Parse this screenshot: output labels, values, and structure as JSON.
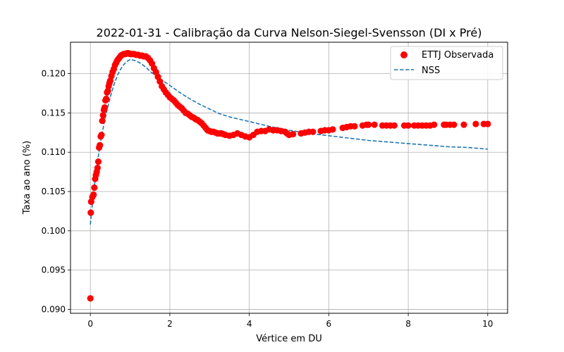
{
  "chart_data": {
    "type": "scatter",
    "title": "2022-01-31 - Calibração da Curva Nelson-Siegel-Svensson (DI x Pré)",
    "xlabel": "Vértice em DU",
    "ylabel": "Taxa ao ano (%)",
    "xlim": [
      -0.5,
      10.5
    ],
    "ylim": [
      0.0895,
      0.124
    ],
    "x_ticks": [
      0,
      2,
      4,
      6,
      8,
      10
    ],
    "y_ticks": [
      0.09,
      0.095,
      0.1,
      0.105,
      0.11,
      0.115,
      0.12
    ],
    "x_tick_labels": [
      "0",
      "2",
      "4",
      "6",
      "8",
      "10"
    ],
    "y_tick_labels": [
      "0.090",
      "0.095",
      "0.100",
      "0.105",
      "0.110",
      "0.115",
      "0.120"
    ],
    "grid": true,
    "legend_position": "top-right",
    "colors": {
      "observed": "#ff0000",
      "nss": "#1f77b4"
    },
    "series": [
      {
        "name": "ETTJ Observada",
        "kind": "scatter",
        "points": [
          [
            0.0,
            0.0914
          ],
          [
            0.01,
            0.1023
          ],
          [
            0.02,
            0.1037
          ],
          [
            0.05,
            0.1043
          ],
          [
            0.08,
            0.1046
          ],
          [
            0.1,
            0.1055
          ],
          [
            0.12,
            0.1066
          ],
          [
            0.14,
            0.1071
          ],
          [
            0.16,
            0.1075
          ],
          [
            0.18,
            0.108
          ],
          [
            0.2,
            0.1088
          ],
          [
            0.22,
            0.1106
          ],
          [
            0.24,
            0.1109
          ],
          [
            0.26,
            0.112
          ],
          [
            0.28,
            0.1122
          ],
          [
            0.3,
            0.114
          ],
          [
            0.32,
            0.1147
          ],
          [
            0.34,
            0.1154
          ],
          [
            0.36,
            0.1157
          ],
          [
            0.38,
            0.1166
          ],
          [
            0.4,
            0.1168
          ],
          [
            0.42,
            0.1176
          ],
          [
            0.44,
            0.1178
          ],
          [
            0.46,
            0.1184
          ],
          [
            0.48,
            0.1188
          ],
          [
            0.5,
            0.1191
          ],
          [
            0.53,
            0.1197
          ],
          [
            0.56,
            0.1202
          ],
          [
            0.59,
            0.1206
          ],
          [
            0.62,
            0.1211
          ],
          [
            0.65,
            0.1214
          ],
          [
            0.68,
            0.1217
          ],
          [
            0.71,
            0.1219
          ],
          [
            0.74,
            0.1221
          ],
          [
            0.77,
            0.1223
          ],
          [
            0.8,
            0.1224
          ],
          [
            0.84,
            0.1225
          ],
          [
            0.88,
            0.1225
          ],
          [
            0.92,
            0.1226
          ],
          [
            0.96,
            0.1226
          ],
          [
            1.0,
            0.1225
          ],
          [
            1.05,
            0.1225
          ],
          [
            1.1,
            0.1225
          ],
          [
            1.15,
            0.1224
          ],
          [
            1.2,
            0.1224
          ],
          [
            1.25,
            0.1223
          ],
          [
            1.3,
            0.1223
          ],
          [
            1.35,
            0.1222
          ],
          [
            1.4,
            0.1222
          ],
          [
            1.45,
            0.122
          ],
          [
            1.5,
            0.1217
          ],
          [
            1.55,
            0.1213
          ],
          [
            1.6,
            0.1207
          ],
          [
            1.65,
            0.1202
          ],
          [
            1.7,
            0.1196
          ],
          [
            1.75,
            0.119
          ],
          [
            1.8,
            0.1184
          ],
          [
            1.85,
            0.118
          ],
          [
            1.9,
            0.1176
          ],
          [
            1.95,
            0.1173
          ],
          [
            2.0,
            0.117
          ],
          [
            2.05,
            0.1168
          ],
          [
            2.1,
            0.1166
          ],
          [
            2.15,
            0.1163
          ],
          [
            2.2,
            0.116
          ],
          [
            2.25,
            0.1158
          ],
          [
            2.3,
            0.1156
          ],
          [
            2.35,
            0.1153
          ],
          [
            2.4,
            0.115
          ],
          [
            2.45,
            0.1149
          ],
          [
            2.5,
            0.1147
          ],
          [
            2.55,
            0.1145
          ],
          [
            2.6,
            0.1144
          ],
          [
            2.65,
            0.1142
          ],
          [
            2.7,
            0.1141
          ],
          [
            2.75,
            0.1139
          ],
          [
            2.8,
            0.1137
          ],
          [
            2.85,
            0.1134
          ],
          [
            2.9,
            0.1131
          ],
          [
            2.95,
            0.1128
          ],
          [
            3.0,
            0.1127
          ],
          [
            3.05,
            0.1126
          ],
          [
            3.1,
            0.1126
          ],
          [
            3.15,
            0.1125
          ],
          [
            3.2,
            0.1124
          ],
          [
            3.25,
            0.1124
          ],
          [
            3.3,
            0.1124
          ],
          [
            3.35,
            0.1123
          ],
          [
            3.4,
            0.1122
          ],
          [
            3.5,
            0.1121
          ],
          [
            3.6,
            0.1122
          ],
          [
            3.7,
            0.1124
          ],
          [
            3.8,
            0.1122
          ],
          [
            3.9,
            0.112
          ],
          [
            4.0,
            0.1119
          ],
          [
            4.1,
            0.1122
          ],
          [
            4.2,
            0.1126
          ],
          [
            4.3,
            0.1127
          ],
          [
            4.4,
            0.1127
          ],
          [
            4.5,
            0.1129
          ],
          [
            4.6,
            0.1128
          ],
          [
            4.7,
            0.1128
          ],
          [
            4.8,
            0.1127
          ],
          [
            4.9,
            0.1126
          ],
          [
            4.95,
            0.1124
          ],
          [
            5.0,
            0.1122
          ],
          [
            5.1,
            0.1123
          ],
          [
            5.3,
            0.1124
          ],
          [
            5.4,
            0.1125
          ],
          [
            5.5,
            0.1126
          ],
          [
            5.6,
            0.1126
          ],
          [
            5.8,
            0.1127
          ],
          [
            5.9,
            0.1128
          ],
          [
            6.0,
            0.1128
          ],
          [
            6.1,
            0.1129
          ],
          [
            6.35,
            0.1131
          ],
          [
            6.45,
            0.1132
          ],
          [
            6.55,
            0.1133
          ],
          [
            6.65,
            0.1133
          ],
          [
            6.85,
            0.1134
          ],
          [
            6.95,
            0.1135
          ],
          [
            7.0,
            0.1135
          ],
          [
            7.15,
            0.1135
          ],
          [
            7.35,
            0.1134
          ],
          [
            7.45,
            0.1134
          ],
          [
            7.55,
            0.1134
          ],
          [
            7.65,
            0.1134
          ],
          [
            7.9,
            0.1134
          ],
          [
            8.0,
            0.1134
          ],
          [
            8.15,
            0.1134
          ],
          [
            8.25,
            0.1134
          ],
          [
            8.35,
            0.1134
          ],
          [
            8.45,
            0.1134
          ],
          [
            8.55,
            0.1134
          ],
          [
            8.65,
            0.1135
          ],
          [
            8.9,
            0.1135
          ],
          [
            8.95,
            0.1135
          ],
          [
            9.05,
            0.1135
          ],
          [
            9.15,
            0.1135
          ],
          [
            9.4,
            0.1135
          ],
          [
            9.7,
            0.1136
          ],
          [
            9.9,
            0.1136
          ],
          [
            10.0,
            0.1136
          ]
        ]
      },
      {
        "name": "NSS",
        "kind": "dashed-line",
        "points": [
          [
            0.0,
            0.1008
          ],
          [
            0.05,
            0.1034
          ],
          [
            0.1,
            0.1057
          ],
          [
            0.15,
            0.1077
          ],
          [
            0.2,
            0.1095
          ],
          [
            0.25,
            0.1111
          ],
          [
            0.3,
            0.1125
          ],
          [
            0.35,
            0.1138
          ],
          [
            0.4,
            0.115
          ],
          [
            0.45,
            0.116
          ],
          [
            0.5,
            0.117
          ],
          [
            0.6,
            0.1187
          ],
          [
            0.7,
            0.12
          ],
          [
            0.8,
            0.1209
          ],
          [
            0.9,
            0.1215
          ],
          [
            1.0,
            0.1218
          ],
          [
            1.1,
            0.1217
          ],
          [
            1.2,
            0.1215
          ],
          [
            1.3,
            0.1212
          ],
          [
            1.4,
            0.1208
          ],
          [
            1.5,
            0.1203
          ],
          [
            1.6,
            0.1199
          ],
          [
            1.8,
            0.1192
          ],
          [
            2.0,
            0.1185
          ],
          [
            2.25,
            0.1176
          ],
          [
            2.5,
            0.1168
          ],
          [
            2.75,
            0.1161
          ],
          [
            3.0,
            0.1155
          ],
          [
            3.25,
            0.1149
          ],
          [
            3.5,
            0.1145
          ],
          [
            3.75,
            0.1142
          ],
          [
            4.0,
            0.1139
          ],
          [
            4.5,
            0.1133
          ],
          [
            5.0,
            0.1128
          ],
          [
            5.5,
            0.1124
          ],
          [
            6.0,
            0.1121
          ],
          [
            6.5,
            0.1118
          ],
          [
            7.0,
            0.1115
          ],
          [
            7.5,
            0.1113
          ],
          [
            8.0,
            0.1111
          ],
          [
            8.5,
            0.1109
          ],
          [
            9.0,
            0.1107
          ],
          [
            9.5,
            0.1106
          ],
          [
            10.0,
            0.1104
          ]
        ]
      }
    ]
  }
}
